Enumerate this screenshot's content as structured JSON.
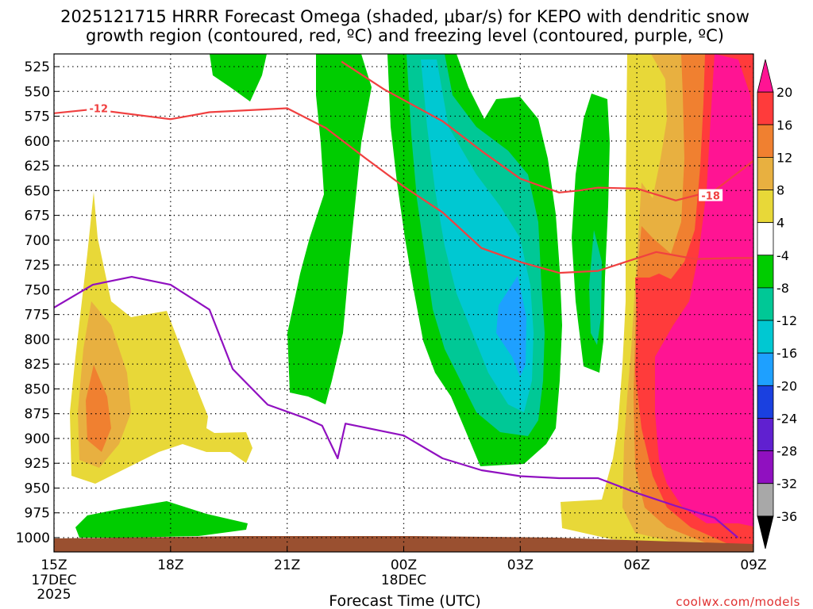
{
  "chart_data": {
    "type": "contour",
    "title_line1": "2025121715 HRRR Forecast Omega (shaded, μbar/s) for KEPO with dendritic snow",
    "title_line2": "growth region (contoured, red, ºC) and freezing level (contoured, purple, ºC)",
    "xlabel": "Forecast Time (UTC)",
    "credit": "coolwx.com/models",
    "x_ticks": [
      {
        "h": 0,
        "label": "15Z",
        "sub1": "17DEC",
        "sub2": "2025"
      },
      {
        "h": 3,
        "label": "18Z",
        "sub1": "",
        "sub2": ""
      },
      {
        "h": 6,
        "label": "21Z",
        "sub1": "",
        "sub2": ""
      },
      {
        "h": 9,
        "label": "00Z",
        "sub1": "18DEC",
        "sub2": ""
      },
      {
        "h": 12,
        "label": "03Z",
        "sub1": "",
        "sub2": ""
      },
      {
        "h": 15,
        "label": "06Z",
        "sub1": "",
        "sub2": ""
      },
      {
        "h": 18,
        "label": "09Z",
        "sub1": "",
        "sub2": ""
      }
    ],
    "y_ticks": [
      "525",
      "550",
      "575",
      "600",
      "625",
      "650",
      "675",
      "700",
      "725",
      "750",
      "775",
      "800",
      "825",
      "850",
      "875",
      "900",
      "925",
      "950",
      "975",
      "1000"
    ],
    "y_range_hpa": [
      515,
      1010
    ],
    "colorbar": {
      "labels": [
        "20",
        "16",
        "12",
        "8",
        "4",
        "-4",
        "-8",
        "-12",
        "-16",
        "-20",
        "-24",
        "-28",
        "-32",
        "-36"
      ],
      "colors": [
        "#ff1493",
        "#ff3b3b",
        "#f08030",
        "#e8b040",
        "#e8d838",
        "#ffffff",
        "#00cc00",
        "#00c896",
        "#00c8d2",
        "#1ea0ff",
        "#1a40e0",
        "#6020d0",
        "#9010c0",
        "#a8a8a8",
        "#000000"
      ]
    },
    "contour_labels": {
      "dgz_top": "-18",
      "dgz_bottom": "-12"
    },
    "ground_color": "#9a5030",
    "dgz_line_color": "#f04040",
    "freezing_line_color": "#9010c0",
    "dgz_bottom_line": [
      [
        0,
        572
      ],
      [
        1,
        568
      ],
      [
        3,
        578
      ],
      [
        4,
        571
      ],
      [
        6,
        567
      ],
      [
        7,
        587
      ],
      [
        8,
        617
      ],
      [
        9,
        646
      ],
      [
        10,
        672
      ],
      [
        11,
        708
      ],
      [
        12,
        722
      ],
      [
        13,
        733
      ],
      [
        14,
        731
      ],
      [
        14.7,
        722
      ],
      [
        15.5,
        712
      ],
      [
        16.5,
        719
      ],
      [
        17.5,
        718
      ],
      [
        18,
        718
      ]
    ],
    "dgz_top_line": [
      [
        7.4,
        520
      ],
      [
        8.5,
        548
      ],
      [
        10,
        580
      ],
      [
        11,
        610
      ],
      [
        12,
        638
      ],
      [
        13,
        652
      ],
      [
        13.5,
        650
      ],
      [
        14,
        647
      ],
      [
        15,
        648
      ],
      [
        16,
        660
      ],
      [
        17,
        650
      ],
      [
        17.5,
        635
      ],
      [
        18,
        620
      ]
    ],
    "freezing_line": [
      [
        0,
        768
      ],
      [
        1,
        745
      ],
      [
        2,
        737
      ],
      [
        3,
        745
      ],
      [
        4,
        770
      ],
      [
        4.6,
        830
      ],
      [
        5.5,
        866
      ],
      [
        6.5,
        880
      ],
      [
        6.9,
        887
      ],
      [
        7.3,
        920
      ],
      [
        7.5,
        885
      ],
      [
        8,
        889
      ],
      [
        9,
        897
      ],
      [
        10,
        920
      ],
      [
        11,
        932
      ],
      [
        12,
        938
      ],
      [
        13,
        940
      ],
      [
        14,
        940
      ],
      [
        15,
        955
      ],
      [
        16,
        968
      ],
      [
        17,
        980
      ],
      [
        17.6,
        1000
      ]
    ]
  }
}
